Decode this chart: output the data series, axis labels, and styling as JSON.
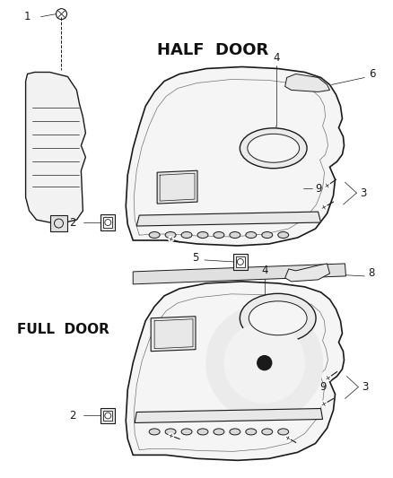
{
  "background_color": "#ffffff",
  "line_color": "#1a1a1a",
  "half_door_label": "HALF  DOOR",
  "full_door_label": "FULL  DOOR",
  "fig_width": 4.38,
  "fig_height": 5.33,
  "dpi": 100
}
